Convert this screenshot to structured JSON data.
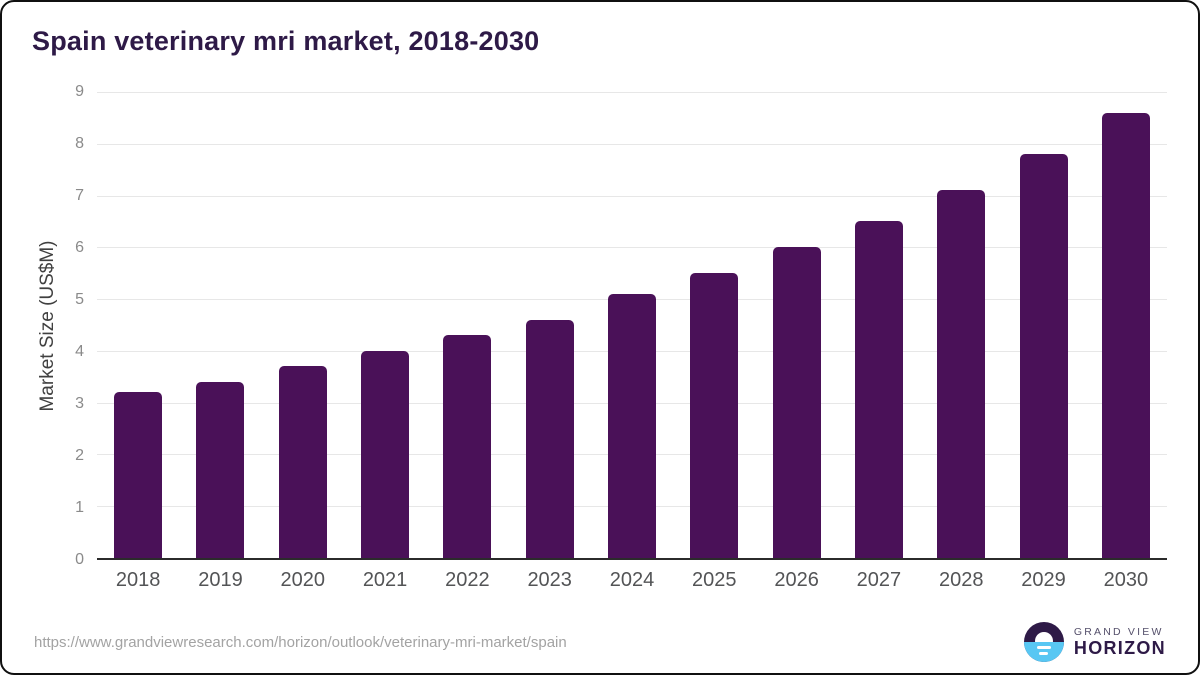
{
  "chart_data": {
    "type": "bar",
    "title": "Spain veterinary mri market, 2018-2030",
    "categories": [
      "2018",
      "2019",
      "2020",
      "2021",
      "2022",
      "2023",
      "2024",
      "2025",
      "2026",
      "2027",
      "2028",
      "2029",
      "2030"
    ],
    "values": [
      3.2,
      3.4,
      3.7,
      4.0,
      4.3,
      4.6,
      5.1,
      5.5,
      6.0,
      6.5,
      7.1,
      7.8,
      8.6
    ],
    "xlabel": "",
    "ylabel": "Market Size (US$M)",
    "ylim": [
      0,
      9
    ],
    "yticks": [
      0,
      1,
      2,
      3,
      4,
      5,
      6,
      7,
      8,
      9
    ],
    "grid": true,
    "legend": "none",
    "bar_color": "#4a1158",
    "title_color": "#2e1a47"
  },
  "footer": {
    "source_url": "https://www.grandviewresearch.com/horizon/outlook/veterinary-mri-market/spain",
    "brand_top": "GRAND VIEW",
    "brand_bottom": "HORIZON"
  }
}
